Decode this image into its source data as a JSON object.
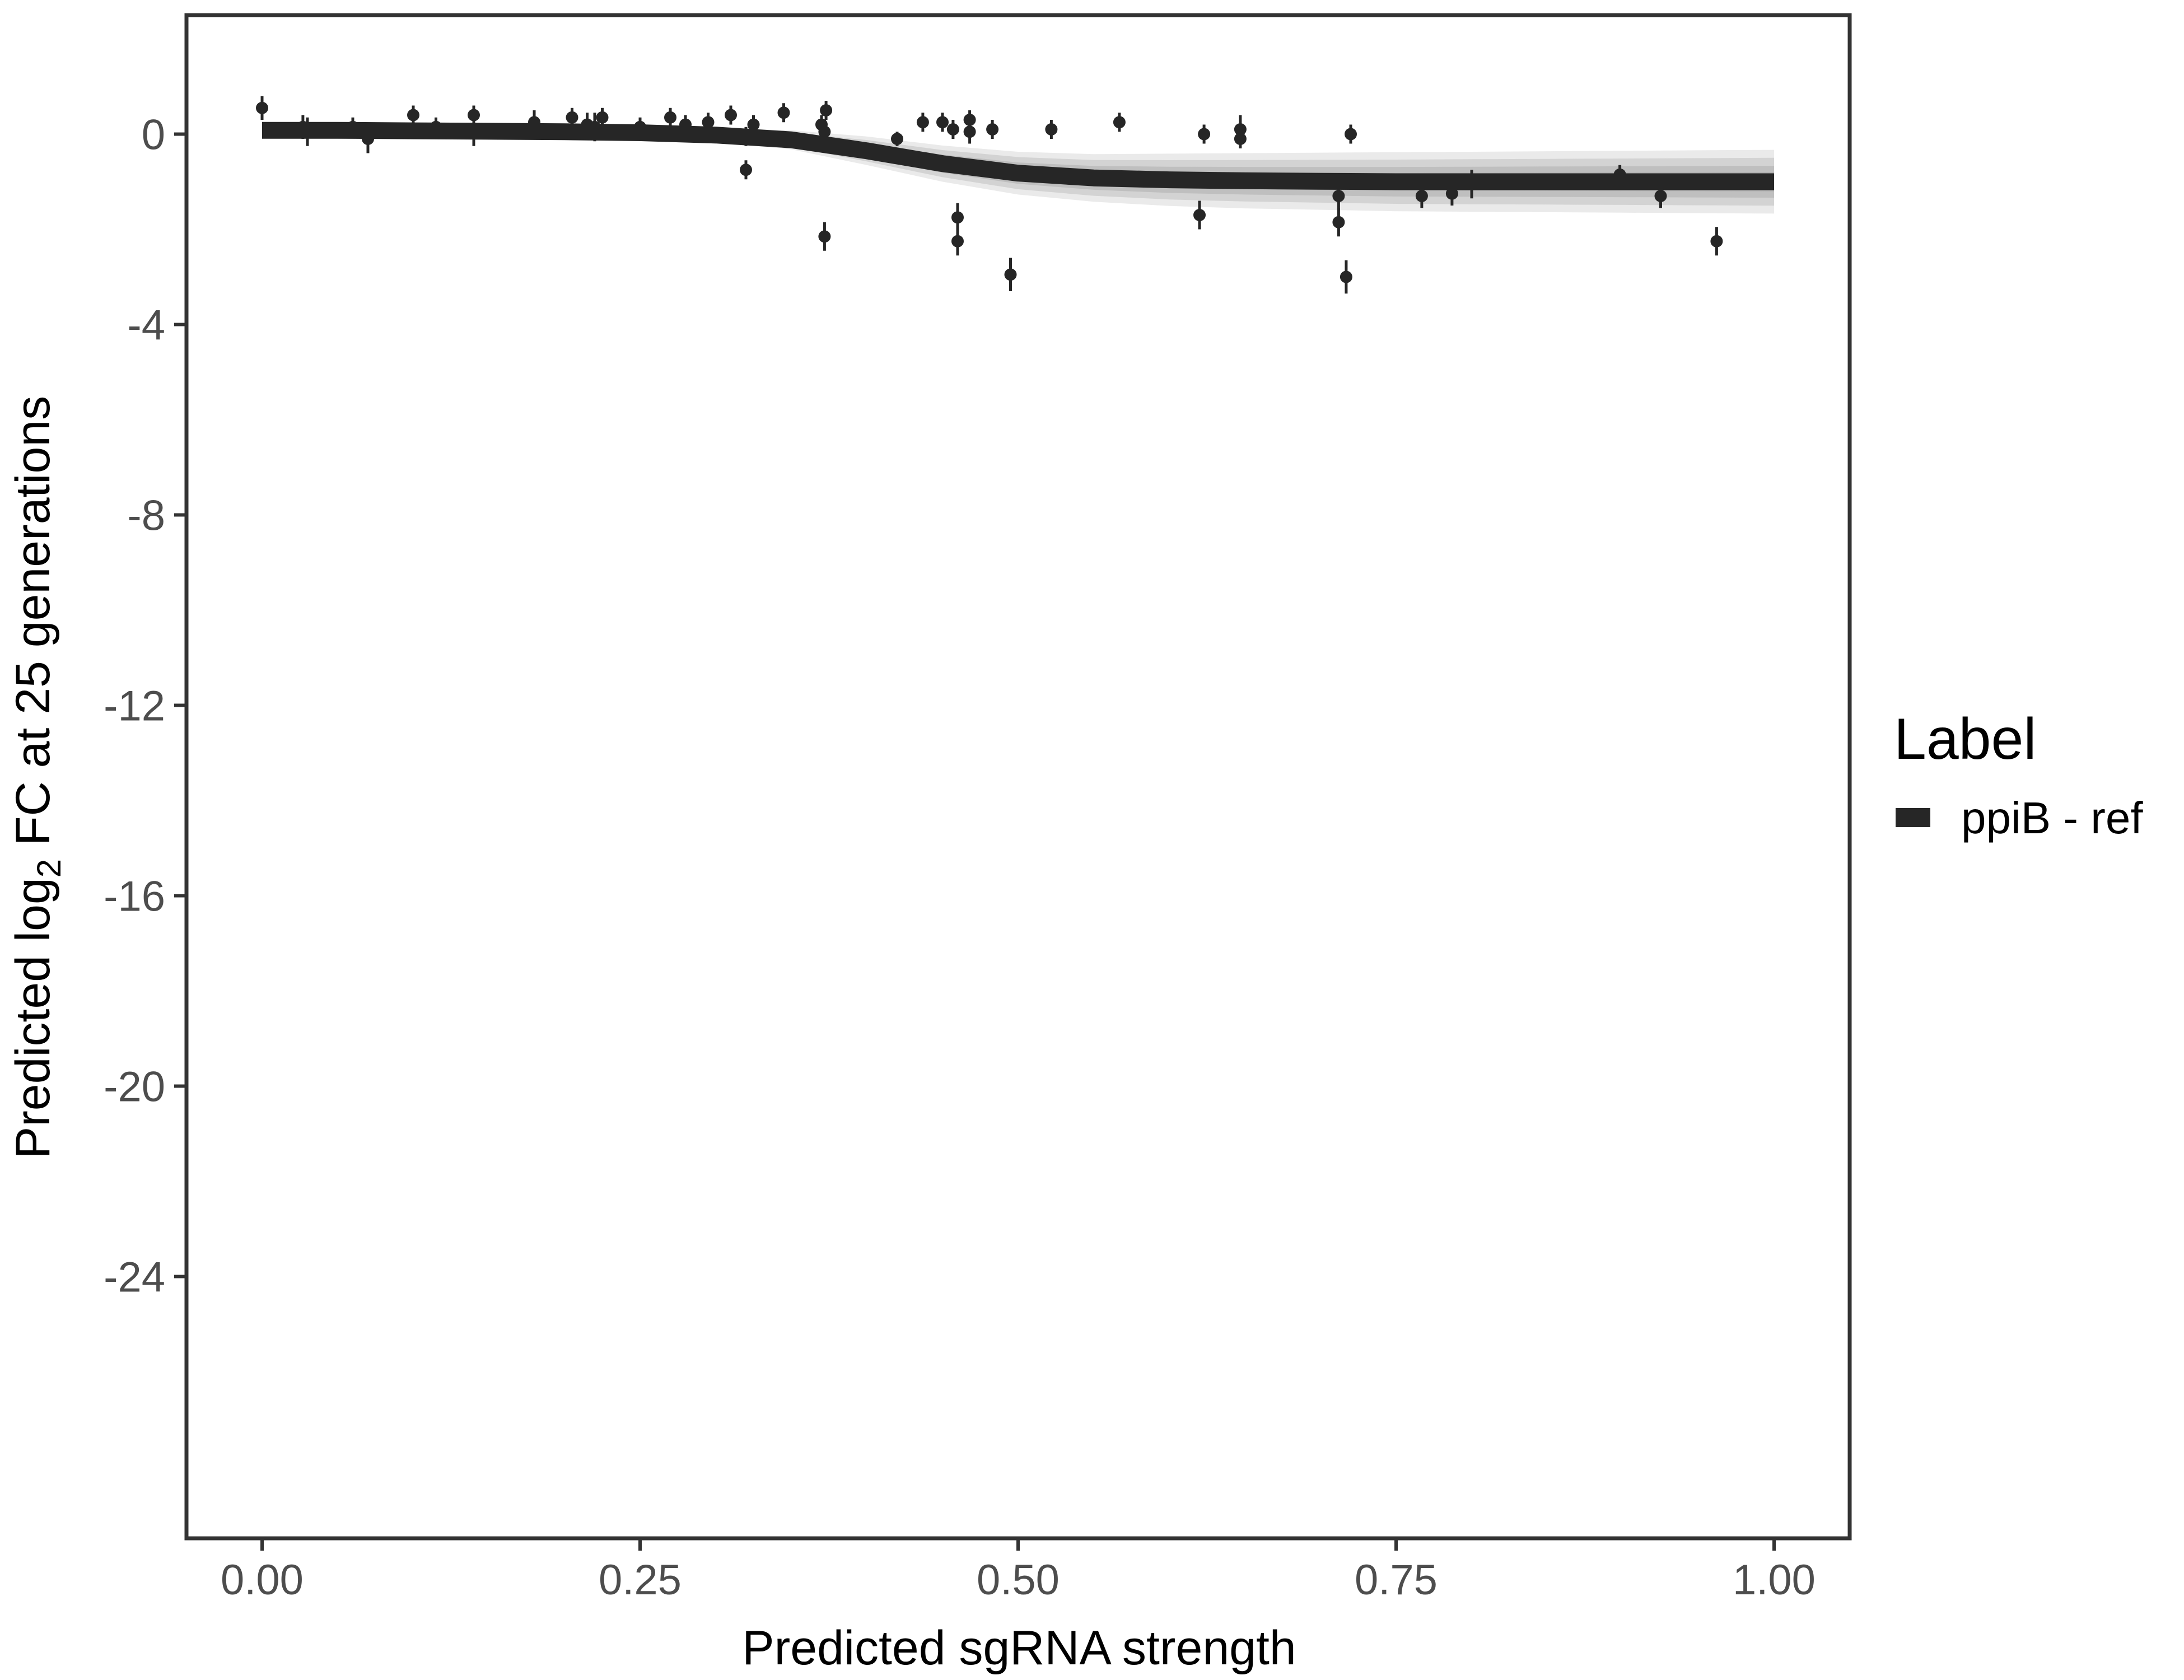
{
  "chart_data": {
    "type": "scatter",
    "xlabel": "Predicted sgRNA strength",
    "ylabel_parts": [
      "Predicted  log",
      "2",
      " FC at 25 generations"
    ],
    "xlim": [
      -0.05,
      1.05
    ],
    "ylim": [
      -29.5,
      2.5
    ],
    "x_ticks": [
      0,
      0.25,
      0.5,
      0.75,
      1.0
    ],
    "x_tick_labels": [
      "0.00",
      "0.25",
      "0.50",
      "0.75",
      "1.00"
    ],
    "y_ticks": [
      0,
      -4,
      -8,
      -12,
      -16,
      -20,
      -24
    ],
    "y_tick_labels": [
      "0",
      "-4",
      "-8",
      "-12",
      "-16",
      "-20",
      "-24"
    ],
    "grid": false,
    "legend": {
      "title": "Label",
      "position": "right",
      "entries": [
        "ppiB - ref"
      ]
    },
    "colors": {
      "line": "#262626",
      "points": "#262626",
      "ribbon": "#9e9e9e",
      "frame": "#333333"
    },
    "fit_curve": {
      "description_free": true,
      "x": [
        0.0,
        0.05,
        0.1,
        0.15,
        0.2,
        0.25,
        0.3,
        0.35,
        0.4,
        0.45,
        0.5,
        0.55,
        0.6,
        0.65,
        0.7,
        0.75,
        0.8,
        0.85,
        0.9,
        0.95,
        1.0
      ],
      "y": [
        0.08,
        0.08,
        0.07,
        0.06,
        0.05,
        0.03,
        -0.02,
        -0.12,
        -0.35,
        -0.62,
        -0.82,
        -0.92,
        -0.96,
        -0.98,
        -0.99,
        -1.0,
        -1.0,
        -1.0,
        -1.0,
        -1.0,
        -1.0
      ],
      "band_half_width": [
        0.12,
        0.12,
        0.12,
        0.12,
        0.12,
        0.12,
        0.14,
        0.2,
        0.3,
        0.38,
        0.45,
        0.5,
        0.55,
        0.58,
        0.6,
        0.62,
        0.63,
        0.64,
        0.65,
        0.66,
        0.67
      ]
    },
    "points": [
      {
        "x": 0.0,
        "y": 0.55,
        "err": 0.25
      },
      {
        "x": 0.027,
        "y": 0.15,
        "err": 0.25
      },
      {
        "x": 0.03,
        "y": 0.05,
        "err": 0.3
      },
      {
        "x": 0.06,
        "y": 0.15,
        "err": 0.2
      },
      {
        "x": 0.07,
        "y": -0.1,
        "err": 0.3
      },
      {
        "x": 0.1,
        "y": 0.4,
        "err": 0.2
      },
      {
        "x": 0.115,
        "y": 0.15,
        "err": 0.2
      },
      {
        "x": 0.14,
        "y": 0.4,
        "err": 0.2
      },
      {
        "x": 0.14,
        "y": 0.05,
        "err": 0.3
      },
      {
        "x": 0.18,
        "y": 0.25,
        "err": 0.25
      },
      {
        "x": 0.205,
        "y": 0.35,
        "err": 0.2
      },
      {
        "x": 0.215,
        "y": 0.2,
        "err": 0.25
      },
      {
        "x": 0.22,
        "y": 0.15,
        "err": 0.3
      },
      {
        "x": 0.225,
        "y": 0.35,
        "err": 0.2
      },
      {
        "x": 0.25,
        "y": 0.15,
        "err": 0.2
      },
      {
        "x": 0.27,
        "y": 0.35,
        "err": 0.2
      },
      {
        "x": 0.28,
        "y": 0.2,
        "err": 0.2
      },
      {
        "x": 0.295,
        "y": 0.25,
        "err": 0.2
      },
      {
        "x": 0.31,
        "y": 0.4,
        "err": 0.2
      },
      {
        "x": 0.32,
        "y": -0.05,
        "err": 0.2
      },
      {
        "x": 0.32,
        "y": -0.75,
        "err": 0.2
      },
      {
        "x": 0.325,
        "y": 0.2,
        "err": 0.2
      },
      {
        "x": 0.345,
        "y": 0.45,
        "err": 0.2
      },
      {
        "x": 0.37,
        "y": 0.2,
        "err": 0.2
      },
      {
        "x": 0.372,
        "y": 0.05,
        "err": 0.25
      },
      {
        "x": 0.373,
        "y": 0.5,
        "err": 0.2
      },
      {
        "x": 0.372,
        "y": -2.15,
        "err": 0.3
      },
      {
        "x": 0.42,
        "y": -0.1,
        "err": 0.15
      },
      {
        "x": 0.437,
        "y": 0.25,
        "err": 0.2
      },
      {
        "x": 0.45,
        "y": 0.25,
        "err": 0.2
      },
      {
        "x": 0.457,
        "y": 0.1,
        "err": 0.2
      },
      {
        "x": 0.46,
        "y": -1.75,
        "err": 0.3
      },
      {
        "x": 0.46,
        "y": -2.25,
        "err": 0.3
      },
      {
        "x": 0.468,
        "y": 0.3,
        "err": 0.2
      },
      {
        "x": 0.468,
        "y": 0.05,
        "err": 0.25
      },
      {
        "x": 0.483,
        "y": 0.1,
        "err": 0.2
      },
      {
        "x": 0.495,
        "y": -2.95,
        "err": 0.35
      },
      {
        "x": 0.522,
        "y": 0.1,
        "err": 0.2
      },
      {
        "x": 0.567,
        "y": 0.25,
        "err": 0.2
      },
      {
        "x": 0.62,
        "y": -1.7,
        "err": 0.3
      },
      {
        "x": 0.623,
        "y": 0.0,
        "err": 0.2
      },
      {
        "x": 0.647,
        "y": 0.1,
        "err": 0.3
      },
      {
        "x": 0.647,
        "y": -0.1,
        "err": 0.2
      },
      {
        "x": 0.712,
        "y": -1.3,
        "err": 0.3
      },
      {
        "x": 0.712,
        "y": -1.85,
        "err": 0.3
      },
      {
        "x": 0.717,
        "y": -3.0,
        "err": 0.35
      },
      {
        "x": 0.72,
        "y": 0.0,
        "err": 0.2
      },
      {
        "x": 0.767,
        "y": -1.3,
        "err": 0.25
      },
      {
        "x": 0.787,
        "y": -1.25,
        "err": 0.25
      },
      {
        "x": 0.8,
        "y": -1.05,
        "err": 0.3
      },
      {
        "x": 0.898,
        "y": -0.85,
        "err": 0.2
      },
      {
        "x": 0.925,
        "y": -1.3,
        "err": 0.25
      },
      {
        "x": 0.962,
        "y": -2.25,
        "err": 0.3
      }
    ]
  }
}
